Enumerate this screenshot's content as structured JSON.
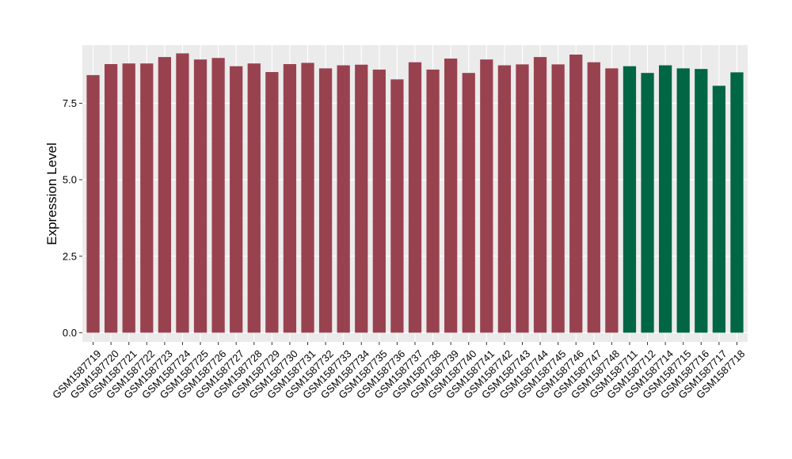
{
  "chart_data": {
    "type": "bar",
    "title": "",
    "xlabel": "",
    "ylabel": "Expression Level",
    "ylim": [
      -0.3,
      9.4
    ],
    "yticks": [
      0.0,
      2.5,
      5.0,
      7.5
    ],
    "ytick_labels": [
      "0.0",
      "2.5",
      "5.0",
      "7.5"
    ],
    "grid": true,
    "legend": "none",
    "colors": {
      "group_a": "#99424F",
      "group_b": "#006644",
      "panel": "#EBEBEB",
      "grid_major": "#FFFFFF",
      "grid_minor": "#F5F5F5"
    },
    "categories": [
      "GSM1587719",
      "GSM1587720",
      "GSM1587721",
      "GSM1587722",
      "GSM1587723",
      "GSM1587724",
      "GSM1587725",
      "GSM1587726",
      "GSM1587727",
      "GSM1587728",
      "GSM1587729",
      "GSM1587730",
      "GSM1587731",
      "GSM1587732",
      "GSM1587733",
      "GSM1587734",
      "GSM1587735",
      "GSM1587736",
      "GSM1587737",
      "GSM1587738",
      "GSM1587739",
      "GSM1587740",
      "GSM1587741",
      "GSM1587742",
      "GSM1587743",
      "GSM1587744",
      "GSM1587745",
      "GSM1587746",
      "GSM1587747",
      "GSM1587748",
      "GSM1587711",
      "GSM1587712",
      "GSM1587714",
      "GSM1587715",
      "GSM1587716",
      "GSM1587717",
      "GSM1587718"
    ],
    "values": [
      8.42,
      8.78,
      8.8,
      8.8,
      9.01,
      9.13,
      8.93,
      8.98,
      8.71,
      8.8,
      8.52,
      8.78,
      8.82,
      8.64,
      8.74,
      8.76,
      8.6,
      8.28,
      8.84,
      8.6,
      8.96,
      8.49,
      8.93,
      8.74,
      8.77,
      9.01,
      8.77,
      9.09,
      8.84,
      8.64,
      8.71,
      8.49,
      8.74,
      8.64,
      8.62,
      8.07,
      8.51
    ],
    "groups": [
      "a",
      "a",
      "a",
      "a",
      "a",
      "a",
      "a",
      "a",
      "a",
      "a",
      "a",
      "a",
      "a",
      "a",
      "a",
      "a",
      "a",
      "a",
      "a",
      "a",
      "a",
      "a",
      "a",
      "a",
      "a",
      "a",
      "a",
      "a",
      "a",
      "a",
      "b",
      "b",
      "b",
      "b",
      "b",
      "b",
      "b"
    ]
  }
}
